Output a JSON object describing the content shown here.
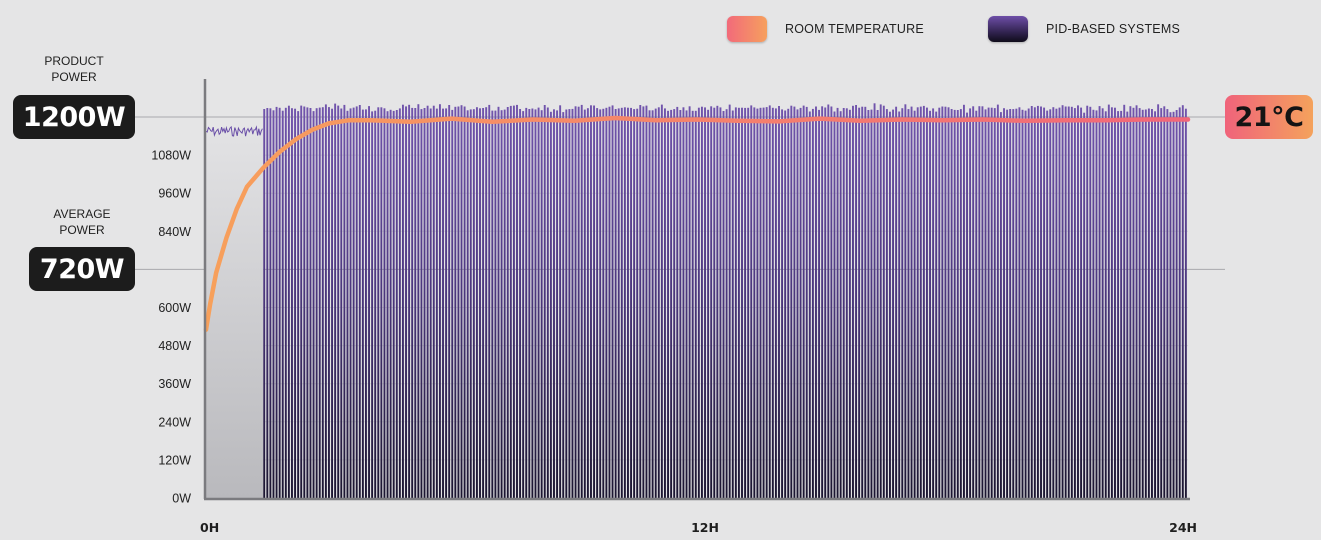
{
  "legend": {
    "room_temperature": {
      "label": "ROOM TEMPERATURE",
      "color": "#f4806b"
    },
    "pid_systems": {
      "label": "PID-BASED SYSTEMS",
      "color": "#5b3f8f"
    }
  },
  "annotations": {
    "product_power": {
      "label_line1": "PRODUCT",
      "label_line2": "POWER",
      "value": "1200W"
    },
    "average_power": {
      "label_line1": "AVERAGE",
      "label_line2": "POWER",
      "value": "720W"
    },
    "room_temp": {
      "value": "21°C"
    }
  },
  "chart_data": {
    "type": "bar",
    "title": "",
    "xlabel": "",
    "ylabel": "",
    "xlim": [
      0,
      24
    ],
    "ylim": [
      0,
      1200
    ],
    "x_ticks": [
      {
        "value": 0,
        "label": "0H"
      },
      {
        "value": 12,
        "label": "12H"
      },
      {
        "value": 24,
        "label": "24H"
      }
    ],
    "y_ticks": [
      {
        "value": 0,
        "label": "0W"
      },
      {
        "value": 120,
        "label": "120W"
      },
      {
        "value": 240,
        "label": "240W"
      },
      {
        "value": 360,
        "label": "360W"
      },
      {
        "value": 480,
        "label": "480W"
      },
      {
        "value": 600,
        "label": "600W"
      },
      {
        "value": 840,
        "label": "840W"
      },
      {
        "value": 960,
        "label": "960W"
      },
      {
        "value": 1080,
        "label": "1080W"
      }
    ],
    "reference_lines": [
      {
        "value": 1200,
        "label": "1200W"
      },
      {
        "value": 720,
        "label": "720W"
      }
    ],
    "series": [
      {
        "name": "PID-BASED SYSTEMS",
        "kind": "pulses",
        "color": "#5b3f8f",
        "warmup_end_h": 1.4,
        "warmup_level_w": 1180,
        "on_level_w": 1200,
        "pulse_count": 300
      },
      {
        "name": "ROOM TEMPERATURE",
        "kind": "line",
        "color": "#f4876a",
        "x": [
          0,
          0.1,
          0.25,
          0.5,
          0.75,
          1.0,
          1.4,
          1.8,
          2.2,
          2.6,
          3.0,
          3.5,
          4.0,
          5.0,
          6.0,
          7.0,
          8.0,
          9.0,
          10.0,
          11.0,
          12.0,
          13.0,
          14.0,
          15.0,
          16.0,
          17.0,
          18.0,
          19.0,
          20.0,
          21.0,
          22.0,
          23.0,
          24.0
        ],
        "y": [
          530,
          610,
          710,
          820,
          910,
          980,
          1040,
          1090,
          1130,
          1160,
          1180,
          1190,
          1190,
          1185,
          1195,
          1185,
          1192,
          1188,
          1197,
          1190,
          1192,
          1188,
          1186,
          1195,
          1188,
          1192,
          1190,
          1192,
          1188,
          1190,
          1190,
          1192,
          1192
        ]
      }
    ],
    "grid": true,
    "legend_position": "top-right"
  }
}
